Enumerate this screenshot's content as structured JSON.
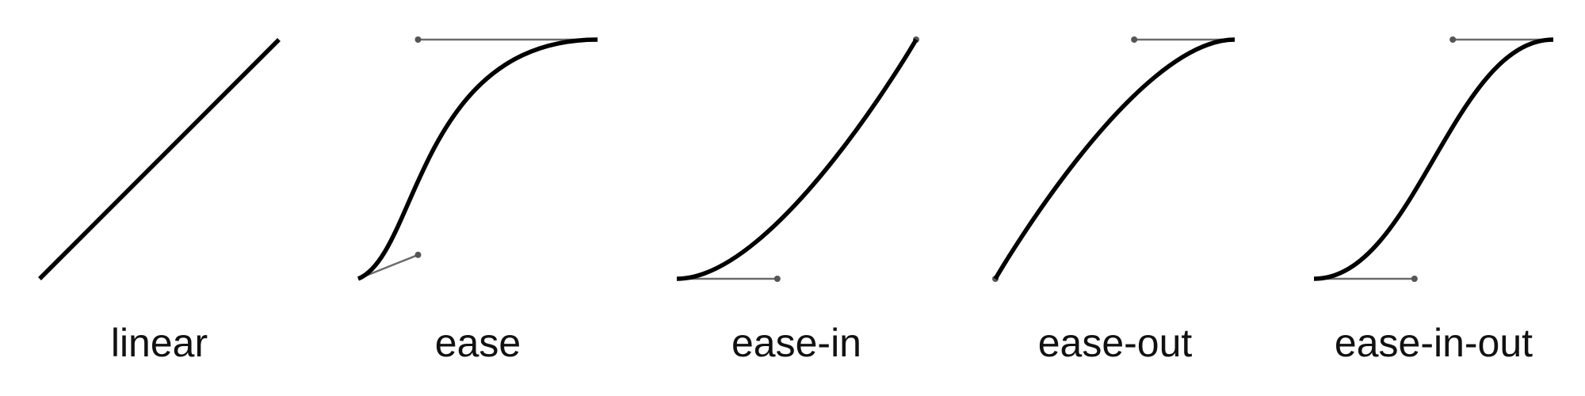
{
  "curves": [
    {
      "id": "linear",
      "label": "linear",
      "control_points": [
        0.0,
        0.0,
        1.0,
        1.0
      ],
      "show_handles": false
    },
    {
      "id": "ease",
      "label": "ease",
      "control_points": [
        0.25,
        0.1,
        0.25,
        1.0
      ],
      "show_handles": true
    },
    {
      "id": "ease-in",
      "label": "ease-in",
      "control_points": [
        0.42,
        0.0,
        1.0,
        1.0
      ],
      "show_handles": true
    },
    {
      "id": "ease-out",
      "label": "ease-out",
      "control_points": [
        0.0,
        0.0,
        0.58,
        1.0
      ],
      "show_handles": true
    },
    {
      "id": "ease-in-out",
      "label": "ease-in-out",
      "control_points": [
        0.42,
        0.0,
        0.58,
        1.0
      ],
      "show_handles": true
    }
  ],
  "colors": {
    "curve": "#000000",
    "handle_line": "#6b6b6b",
    "handle_dot": "#555555",
    "label": "#111111",
    "background": "#ffffff"
  }
}
